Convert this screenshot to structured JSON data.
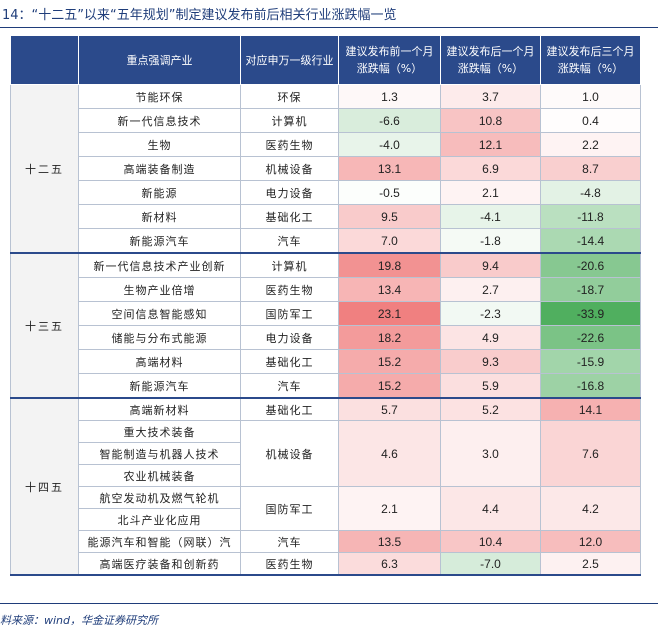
{
  "header": {
    "title": "14：“十二五”以来“五年规划”制定建议发布前后相关行业涨跌幅一览"
  },
  "table": {
    "columns": [
      "重点强调产业",
      "对应申万一级行业",
      "建议发布前一个月涨跌幅（%）",
      "建议发布后一个月涨跌幅（%）",
      "建议发布后三个月涨跌幅（%）"
    ],
    "groups": [
      {
        "period": "十二五",
        "rows": [
          {
            "industries": [
              "节能环保"
            ],
            "sw": "环保",
            "before": "1.3",
            "after1": "3.7",
            "after3": "1.0"
          },
          {
            "industries": [
              "新一代信息技术"
            ],
            "sw": "计算机",
            "before": "-6.6",
            "after1": "10.8",
            "after3": "0.4"
          },
          {
            "industries": [
              "生物"
            ],
            "sw": "医药生物",
            "before": "-4.0",
            "after1": "12.1",
            "after3": "2.2"
          },
          {
            "industries": [
              "高端装备制造"
            ],
            "sw": "机械设备",
            "before": "13.1",
            "after1": "6.9",
            "after3": "8.7"
          },
          {
            "industries": [
              "新能源"
            ],
            "sw": "电力设备",
            "before": "-0.5",
            "after1": "2.1",
            "after3": "-4.8"
          },
          {
            "industries": [
              "新材料"
            ],
            "sw": "基础化工",
            "before": "9.5",
            "after1": "-4.1",
            "after3": "-11.8"
          },
          {
            "industries": [
              "新能源汽车"
            ],
            "sw": "汽车",
            "before": "7.0",
            "after1": "-1.8",
            "after3": "-14.4"
          }
        ]
      },
      {
        "period": "十三五",
        "rows": [
          {
            "industries": [
              "新一代信息技术产业创新"
            ],
            "sw": "计算机",
            "before": "19.8",
            "after1": "9.4",
            "after3": "-20.6"
          },
          {
            "industries": [
              "生物产业倍增"
            ],
            "sw": "医药生物",
            "before": "13.4",
            "after1": "2.7",
            "after3": "-18.7"
          },
          {
            "industries": [
              "空间信息智能感知"
            ],
            "sw": "国防军工",
            "before": "23.1",
            "after1": "-2.3",
            "after3": "-33.9"
          },
          {
            "industries": [
              "储能与分布式能源"
            ],
            "sw": "电力设备",
            "before": "18.2",
            "after1": "4.9",
            "after3": "-22.6"
          },
          {
            "industries": [
              "高端材料"
            ],
            "sw": "基础化工",
            "before": "15.2",
            "after1": "9.3",
            "after3": "-15.9"
          },
          {
            "industries": [
              "新能源汽车"
            ],
            "sw": "汽车",
            "before": "15.2",
            "after1": "5.9",
            "after3": "-16.8"
          }
        ]
      },
      {
        "period": "十四五",
        "rows": [
          {
            "industries": [
              "高端新材料"
            ],
            "sw": "基础化工",
            "before": "5.7",
            "after1": "5.2",
            "after3": "14.1"
          },
          {
            "industries": [
              "重大技术装备",
              "智能制造与机器人技术",
              "农业机械装备"
            ],
            "sw": "机械设备",
            "before": "4.6",
            "after1": "3.0",
            "after3": "7.6"
          },
          {
            "industries": [
              "航空发动机及燃气轮机",
              "北斗产业化应用"
            ],
            "sw": "国防军工",
            "before": "2.1",
            "after1": "4.4",
            "after3": "4.2"
          },
          {
            "industries": [
              "能源汽车和智能（网联）汽"
            ],
            "sw": "汽车",
            "before": "13.5",
            "after1": "10.4",
            "after3": "12.0"
          },
          {
            "industries": [
              "高端医疗装备和创新药"
            ],
            "sw": "医药生物",
            "before": "6.3",
            "after1": "-7.0",
            "after3": "2.5"
          }
        ]
      }
    ]
  },
  "footer": {
    "source": "料来源：wind，华金证券研究所"
  }
}
